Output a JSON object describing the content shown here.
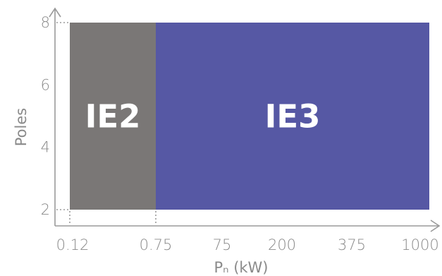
{
  "chart_data": {
    "type": "bar",
    "x_tick_labels": [
      "0.12",
      "0.75",
      "75",
      "200",
      "375",
      "1000"
    ],
    "y_tick_labels": [
      "2",
      "4",
      "6",
      "8"
    ],
    "ylim": [
      2,
      8
    ],
    "xlabel": "Pₙ (kW)",
    "ylabel": "Poles",
    "zones": [
      {
        "label": "IE2",
        "x_from": "0.12",
        "x_to": "0.75",
        "y_from": 2,
        "y_to": 8,
        "color": "#7a7776"
      },
      {
        "label": "IE3",
        "x_from": "0.75",
        "x_to": "1000",
        "y_from": 2,
        "y_to": 8,
        "color": "#5658a4"
      }
    ],
    "grid": false,
    "legend": "none"
  }
}
